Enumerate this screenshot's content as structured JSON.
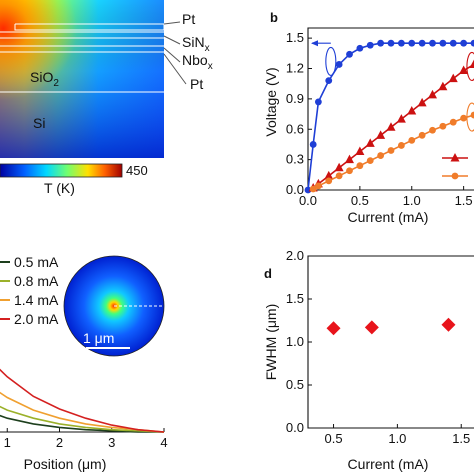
{
  "panel_a": {
    "layer_labels": [
      "Pt",
      "SiN",
      "x",
      "Nbo",
      "x",
      "Pt"
    ],
    "region_labels": [
      "SiO",
      "2",
      "Si"
    ],
    "colorbar": {
      "label": "T (K)",
      "max_label": "450"
    }
  },
  "panel_c": {
    "legend": [
      "0.5 mA",
      "0.8 mA",
      "1.4 mA",
      "2.0 mA"
    ],
    "inset_scale": "1 μm"
  },
  "chart_data": [
    {
      "panel": "b",
      "type": "line",
      "title": "b",
      "xlabel": "Current (mA)",
      "ylabel": "Voltage (V)",
      "xlim": [
        0,
        1.6
      ],
      "ylim": [
        0,
        1.6
      ],
      "xticks": [
        "0.0",
        "0.5",
        "1.0",
        "1.5"
      ],
      "yticks": [
        "0.0",
        "0.3",
        "0.6",
        "0.9",
        "1.2",
        "1.5"
      ],
      "series": [
        {
          "color": "#1f3fd6",
          "marker": "circle",
          "x": [
            0.0,
            0.05,
            0.1,
            0.2,
            0.3,
            0.4,
            0.5,
            0.6,
            0.7,
            0.8,
            0.9,
            1.0,
            1.1,
            1.2,
            1.3,
            1.4,
            1.5,
            1.6
          ],
          "y": [
            0.0,
            0.45,
            0.87,
            1.08,
            1.24,
            1.34,
            1.4,
            1.43,
            1.45,
            1.45,
            1.45,
            1.45,
            1.45,
            1.45,
            1.45,
            1.45,
            1.45,
            1.45
          ]
        },
        {
          "color": "#cc1111",
          "marker": "triangle",
          "x": [
            0.05,
            0.1,
            0.2,
            0.3,
            0.4,
            0.5,
            0.6,
            0.7,
            0.8,
            0.9,
            1.0,
            1.1,
            1.2,
            1.3,
            1.4,
            1.5,
            1.6
          ],
          "y": [
            0.02,
            0.06,
            0.14,
            0.22,
            0.3,
            0.38,
            0.46,
            0.54,
            0.62,
            0.7,
            0.78,
            0.86,
            0.94,
            1.02,
            1.1,
            1.18,
            1.24
          ]
        },
        {
          "color": "#f07c2a",
          "marker": "circle",
          "x": [
            0.05,
            0.1,
            0.2,
            0.3,
            0.4,
            0.5,
            0.6,
            0.7,
            0.8,
            0.9,
            1.0,
            1.1,
            1.2,
            1.3,
            1.4,
            1.5,
            1.6
          ],
          "y": [
            0.01,
            0.04,
            0.09,
            0.14,
            0.19,
            0.24,
            0.29,
            0.34,
            0.39,
            0.44,
            0.49,
            0.54,
            0.59,
            0.63,
            0.67,
            0.71,
            0.74
          ]
        }
      ]
    },
    {
      "panel": "c",
      "type": "line",
      "xlabel": "Position (μm)",
      "xlim": [
        0,
        4
      ],
      "xticks": [
        "1",
        "2",
        "3",
        "4"
      ],
      "series": [
        {
          "name": "0.5 mA",
          "color": "#1d3f1d",
          "x": [
            0.5,
            1.0,
            1.5,
            2.0,
            2.5,
            3.0,
            3.5,
            4.0
          ],
          "y": [
            0.2,
            0.12,
            0.07,
            0.04,
            0.02,
            0.01,
            0.0,
            0.0
          ]
        },
        {
          "name": "0.8 mA",
          "color": "#9bb12a",
          "x": [
            0.5,
            1.0,
            1.5,
            2.0,
            2.5,
            3.0,
            3.5,
            4.0
          ],
          "y": [
            0.3,
            0.19,
            0.12,
            0.07,
            0.04,
            0.02,
            0.01,
            0.0
          ]
        },
        {
          "name": "1.4 mA",
          "color": "#f0a030",
          "x": [
            0.5,
            1.0,
            1.5,
            2.0,
            2.5,
            3.0,
            3.5,
            4.0
          ],
          "y": [
            0.45,
            0.3,
            0.19,
            0.12,
            0.07,
            0.04,
            0.02,
            0.0
          ]
        },
        {
          "name": "2.0 mA",
          "color": "#d42020",
          "x": [
            0.5,
            1.0,
            1.5,
            2.0,
            2.5,
            3.0,
            3.5,
            4.0
          ],
          "y": [
            0.7,
            0.48,
            0.31,
            0.2,
            0.12,
            0.06,
            0.02,
            0.0
          ]
        }
      ]
    },
    {
      "panel": "d",
      "type": "scatter",
      "title": "d",
      "xlabel": "Current (mA)",
      "ylabel": "FWHM (μm)",
      "xlim": [
        0.3,
        1.6
      ],
      "ylim": [
        0.0,
        2.0
      ],
      "xticks": [
        "0.5",
        "1.0",
        "1.5"
      ],
      "yticks": [
        "0.0",
        "0.5",
        "1.0",
        "1.5",
        "2.0"
      ],
      "series": [
        {
          "color": "#e8141b",
          "marker": "diamond",
          "x": [
            0.5,
            0.8,
            1.4
          ],
          "y": [
            1.16,
            1.17,
            1.2
          ]
        }
      ]
    }
  ]
}
